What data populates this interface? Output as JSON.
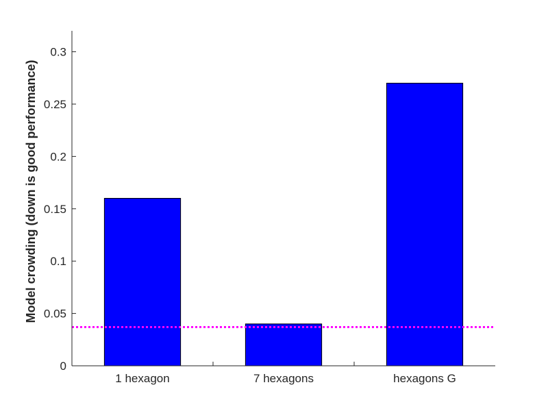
{
  "chart_data": {
    "type": "bar",
    "title": "",
    "xlabel": "",
    "ylabel": "Model crowding (down is good performance)",
    "categories": [
      "1 hexagon",
      "7 hexagons",
      "hexagons G"
    ],
    "values": [
      0.16,
      0.04,
      0.27
    ],
    "ylim": [
      0,
      0.32
    ],
    "yticks": [
      0,
      0.05,
      0.1,
      0.15,
      0.2,
      0.25,
      0.3
    ],
    "ytick_labels": [
      "0",
      "0.05",
      "0.1",
      "0.15",
      "0.2",
      "0.25",
      "0.3"
    ],
    "reference_line": {
      "value": 0.037,
      "style": "dotted",
      "color": "#ff00ff"
    },
    "bar_color": "#0000ff",
    "grid": false,
    "legend": "none"
  }
}
